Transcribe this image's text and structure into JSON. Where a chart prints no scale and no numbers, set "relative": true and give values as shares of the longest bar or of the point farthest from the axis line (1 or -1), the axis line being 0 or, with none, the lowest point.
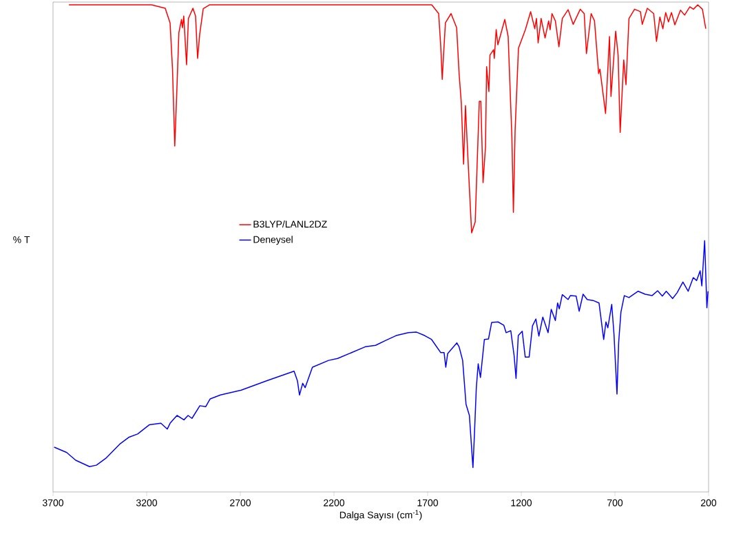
{
  "chart_data": {
    "type": "line",
    "relative": true,
    "xlabel": "Dalga Sayısı (cm$^{-1}$)",
    "ylabel": "% T",
    "xlim": [
      3700,
      200
    ],
    "xticks": [
      3700,
      3200,
      2700,
      2200,
      1700,
      1200,
      700,
      200
    ],
    "legend": "center left",
    "series": [
      {
        "name": "B3LYP/LANL2DZ",
        "color": "#ff0000",
        "x": [
          3615,
          3174,
          3101,
          3075,
          3062,
          3050,
          3040,
          3028,
          3014,
          3009,
          3002,
          2987,
          2977,
          2953,
          2939,
          2928,
          2917,
          2898,
          2865,
          1678,
          1641,
          1630,
          1622,
          1615,
          1605,
          1575,
          1545,
          1532,
          1520,
          1508,
          1498,
          1490,
          1477,
          1465,
          1446,
          1435,
          1424,
          1416,
          1404,
          1391,
          1385,
          1373,
          1367,
          1348,
          1344,
          1334,
          1325,
          1288,
          1270,
          1250,
          1242,
          1233,
          1215,
          1178,
          1150,
          1128,
          1119,
          1110,
          1094,
          1073,
          1054,
          1046,
          1036,
          1018,
          999,
          981,
          950,
          923,
          885,
          864,
          852,
          827,
          809,
          787,
          780,
          750,
          729,
          721,
          696,
          683,
          672,
          653,
          641,
          625,
          595,
          564,
          554,
          527,
          493,
          478,
          460,
          444,
          429,
          414,
          398,
          380,
          350,
          328,
          300,
          281,
          258,
          233,
          215
        ],
        "values": [
          1.0,
          1.0,
          0.993,
          0.963,
          0.868,
          0.71,
          0.812,
          0.943,
          0.97,
          0.953,
          0.977,
          0.877,
          0.972,
          0.993,
          0.977,
          0.89,
          0.939,
          0.992,
          1.0,
          1.0,
          0.982,
          0.915,
          0.847,
          0.897,
          0.963,
          0.982,
          0.953,
          0.859,
          0.798,
          0.673,
          0.793,
          0.727,
          0.624,
          0.532,
          0.554,
          0.68,
          0.802,
          0.802,
          0.635,
          0.709,
          0.873,
          0.822,
          0.897,
          0.908,
          0.89,
          0.949,
          0.918,
          0.97,
          0.935,
          0.727,
          0.574,
          0.741,
          0.911,
          0.949,
          0.986,
          0.951,
          0.972,
          0.922,
          0.972,
          0.932,
          0.967,
          0.949,
          0.982,
          0.967,
          0.914,
          0.972,
          0.99,
          0.96,
          0.991,
          0.982,
          0.9,
          0.982,
          0.967,
          0.859,
          0.868,
          0.777,
          0.935,
          0.812,
          0.946,
          0.897,
          0.738,
          0.887,
          0.836,
          0.972,
          0.991,
          0.986,
          0.96,
          0.993,
          0.982,
          0.925,
          0.975,
          0.951,
          0.984,
          0.965,
          0.984,
          0.959,
          0.989,
          0.979,
          0.996,
          0.991,
          1.0,
          0.991,
          0.951
        ]
      },
      {
        "name": "Deneysel",
        "color": "#0000ff",
        "x": [
          3694,
          3627,
          3579,
          3505,
          3468,
          3418,
          3344,
          3296,
          3248,
          3185,
          3124,
          3090,
          3075,
          3038,
          3001,
          2979,
          2958,
          2916,
          2885,
          2861,
          2806,
          2695,
          2560,
          2413,
          2395,
          2384,
          2367,
          2354,
          2315,
          2229,
          2180,
          2033,
          1978,
          1924,
          1868,
          1802,
          1759,
          1716,
          1679,
          1630,
          1612,
          1603,
          1593,
          1544,
          1532,
          1513,
          1495,
          1477,
          1458,
          1450,
          1440,
          1430,
          1418,
          1397,
          1375,
          1358,
          1324,
          1293,
          1281,
          1256,
          1238,
          1228,
          1216,
          1195,
          1179,
          1158,
          1140,
          1122,
          1106,
          1085,
          1057,
          1040,
          1018,
          1006,
          997,
          981,
          950,
          938,
          907,
          891,
          870,
          848,
          816,
          785,
          760,
          748,
          738,
          717,
          705,
          689,
          680,
          668,
          650,
          625,
          576,
          539,
          502,
          472,
          447,
          426,
          392,
          368,
          337,
          309,
          282,
          264,
          245,
          236,
          221,
          209,
          203
        ],
        "values": [
          0.092,
          0.081,
          0.065,
          0.052,
          0.055,
          0.069,
          0.098,
          0.112,
          0.119,
          0.138,
          0.141,
          0.129,
          0.141,
          0.157,
          0.148,
          0.157,
          0.151,
          0.177,
          0.175,
          0.191,
          0.199,
          0.209,
          0.228,
          0.248,
          0.228,
          0.199,
          0.223,
          0.214,
          0.256,
          0.27,
          0.274,
          0.298,
          0.301,
          0.311,
          0.321,
          0.327,
          0.328,
          0.321,
          0.313,
          0.286,
          0.286,
          0.256,
          0.284,
          0.306,
          0.298,
          0.27,
          0.18,
          0.157,
          0.05,
          0.119,
          0.214,
          0.263,
          0.235,
          0.313,
          0.314,
          0.348,
          0.349,
          0.342,
          0.327,
          0.331,
          0.279,
          0.233,
          0.321,
          0.33,
          0.277,
          0.277,
          0.341,
          0.355,
          0.32,
          0.359,
          0.327,
          0.375,
          0.352,
          0.388,
          0.376,
          0.405,
          0.395,
          0.403,
          0.402,
          0.371,
          0.406,
          0.395,
          0.393,
          0.388,
          0.313,
          0.349,
          0.337,
          0.385,
          0.324,
          0.201,
          0.307,
          0.369,
          0.403,
          0.399,
          0.412,
          0.406,
          0.403,
          0.413,
          0.402,
          0.412,
          0.397,
          0.409,
          0.431,
          0.412,
          0.44,
          0.434,
          0.454,
          0.423,
          0.516,
          0.378,
          0.412
        ]
      }
    ]
  }
}
